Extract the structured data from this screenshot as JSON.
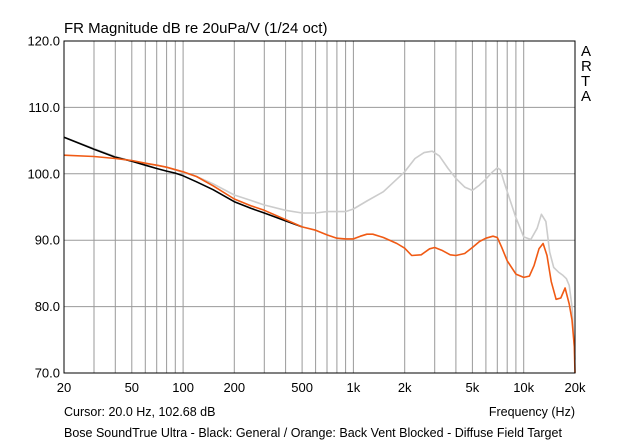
{
  "chart_data": {
    "type": "line",
    "title": "FR Magnitude dB re 20uPa/V (1/24 oct)",
    "xlabel": "Frequency (Hz)",
    "ylabel": "",
    "x_scale": "log",
    "xlim": [
      20,
      20000
    ],
    "ylim": [
      70,
      120
    ],
    "grid": true,
    "x_ticks": [
      {
        "value": 20,
        "label": "20"
      },
      {
        "value": 50,
        "label": "50"
      },
      {
        "value": 100,
        "label": "100"
      },
      {
        "value": 200,
        "label": "200"
      },
      {
        "value": 500,
        "label": "500"
      },
      {
        "value": 1000,
        "label": "1k"
      },
      {
        "value": 2000,
        "label": "2k"
      },
      {
        "value": 5000,
        "label": "5k"
      },
      {
        "value": 10000,
        "label": "10k"
      },
      {
        "value": 20000,
        "label": "20k"
      }
    ],
    "y_ticks": [
      {
        "value": 70,
        "label": "70.0"
      },
      {
        "value": 80,
        "label": "80.0"
      },
      {
        "value": 90,
        "label": "90.0"
      },
      {
        "value": 100,
        "label": "100.0"
      },
      {
        "value": 110,
        "label": "110.0"
      },
      {
        "value": 120,
        "label": "120.0"
      }
    ],
    "series": [
      {
        "color": "#cccccc",
        "x": [
          20,
          30,
          40,
          50,
          60,
          70,
          80,
          100,
          120,
          150,
          200,
          250,
          300,
          400,
          500,
          600,
          700,
          800,
          900,
          1000,
          1200,
          1500,
          2000,
          2300,
          2600,
          2900,
          3200,
          3600,
          4000,
          4500,
          5000,
          5500,
          6000,
          6500,
          7000,
          7300,
          7700,
          8200,
          9000,
          10000,
          11000,
          12000,
          12700,
          13500,
          14200,
          15000,
          16000,
          17000,
          17800,
          18500,
          19200,
          20000
        ],
        "y": [
          105.5,
          103.8,
          102.6,
          101.9,
          101.5,
          101.3,
          101,
          100.2,
          99.6,
          98.5,
          96.8,
          96,
          95.3,
          94.5,
          94.1,
          94.1,
          94.3,
          94.3,
          94.3,
          94.7,
          95.9,
          97.3,
          100.3,
          102.3,
          103.2,
          103.4,
          102.7,
          100.8,
          99.3,
          98,
          97.5,
          98.3,
          99.2,
          100.2,
          100.9,
          100.6,
          98.6,
          96.5,
          93.4,
          90.5,
          90.1,
          91.8,
          93.9,
          92.8,
          88.2,
          85.9,
          85.2,
          84.7,
          84.2,
          83.2,
          80,
          72
        ]
      },
      {
        "color": "#000000",
        "x": [
          20,
          30,
          40,
          50,
          60,
          70,
          80,
          90,
          100,
          120,
          150,
          200,
          250,
          300,
          400,
          500
        ],
        "y": [
          105.5,
          103.7,
          102.5,
          101.9,
          101.3,
          100.8,
          100.4,
          100.1,
          99.7,
          98.8,
          97.6,
          95.8,
          94.8,
          94.1,
          92.9,
          92
        ]
      },
      {
        "color": "#f05a14",
        "x": [
          20,
          30,
          40,
          50,
          60,
          70,
          80,
          100,
          120,
          150,
          200,
          250,
          300,
          400,
          500,
          600,
          700,
          800,
          900,
          1000,
          1100,
          1200,
          1300,
          1500,
          1800,
          2000,
          2200,
          2500,
          2800,
          3000,
          3300,
          3700,
          4000,
          4500,
          5000,
          5500,
          6000,
          6600,
          7000,
          7400,
          8000,
          9000,
          10000,
          10800,
          11500,
          12300,
          13000,
          13700,
          14500,
          15500,
          16500,
          17500,
          18500,
          19200,
          19800,
          20000
        ],
        "y": [
          102.8,
          102.6,
          102.3,
          102,
          101.6,
          101.3,
          101,
          100.3,
          99.6,
          98.2,
          96.2,
          95.2,
          94.5,
          93.1,
          92,
          91.5,
          90.8,
          90.3,
          90.2,
          90.2,
          90.6,
          90.9,
          90.9,
          90.4,
          89.5,
          88.8,
          87.7,
          87.8,
          88.7,
          88.9,
          88.5,
          87.8,
          87.7,
          88,
          88.9,
          89.8,
          90.3,
          90.6,
          90.4,
          89,
          86.9,
          84.9,
          84.4,
          84.6,
          86.2,
          88.7,
          89.5,
          87.7,
          83.8,
          81.1,
          81.3,
          82.8,
          80.4,
          78,
          74,
          70
        ]
      }
    ],
    "annotations": {
      "brand": [
        "A",
        "R",
        "T",
        "A"
      ],
      "cursor": "Cursor: 20.0 Hz, 102.68 dB",
      "caption": "Bose SoundTrue Ultra - Black: General / Orange: Back Vent Blocked - Diffuse Field Target"
    }
  }
}
